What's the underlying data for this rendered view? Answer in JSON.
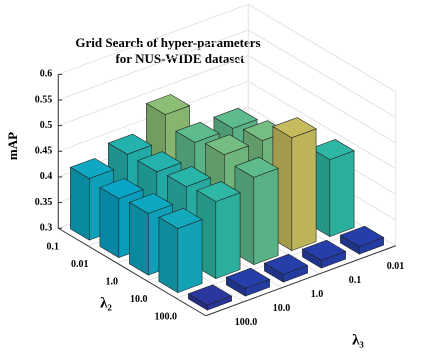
{
  "chart_data": {
    "type": "bar3d",
    "title": [
      "Grid Search of hyper-parameters",
      "for NUS-WIDE dataset"
    ],
    "zlabel": "mAP",
    "xlabel": "λ₂",
    "ylabel": "λ₃",
    "xcategories": [
      "0.1",
      "0.01",
      "1.0",
      "10.0",
      "100.0"
    ],
    "ycategories": [
      "0.01",
      "0.1",
      "1.0",
      "10.0",
      "100.0"
    ],
    "values": [
      [
        0.315,
        0.32,
        0.49,
        0.44,
        0.42
      ],
      [
        0.32,
        0.47,
        0.47,
        0.44,
        0.415
      ],
      [
        0.325,
        0.48,
        0.48,
        0.445,
        0.42
      ],
      [
        0.45,
        0.52,
        0.47,
        0.45,
        0.425
      ],
      [
        0.315,
        0.315,
        0.315,
        0.315,
        0.31
      ]
    ],
    "zlim": [
      0.3,
      0.6
    ],
    "zticks": [
      0.3,
      0.35,
      0.4,
      0.45,
      0.5,
      0.55,
      0.6
    ],
    "grid": true,
    "colormap": [
      "#352a87",
      "#0f5cdd",
      "#1481d6",
      "#06a4ca",
      "#2eb7a4",
      "#87bf77",
      "#d1bb59",
      "#fec832",
      "#f9fb0e"
    ]
  }
}
